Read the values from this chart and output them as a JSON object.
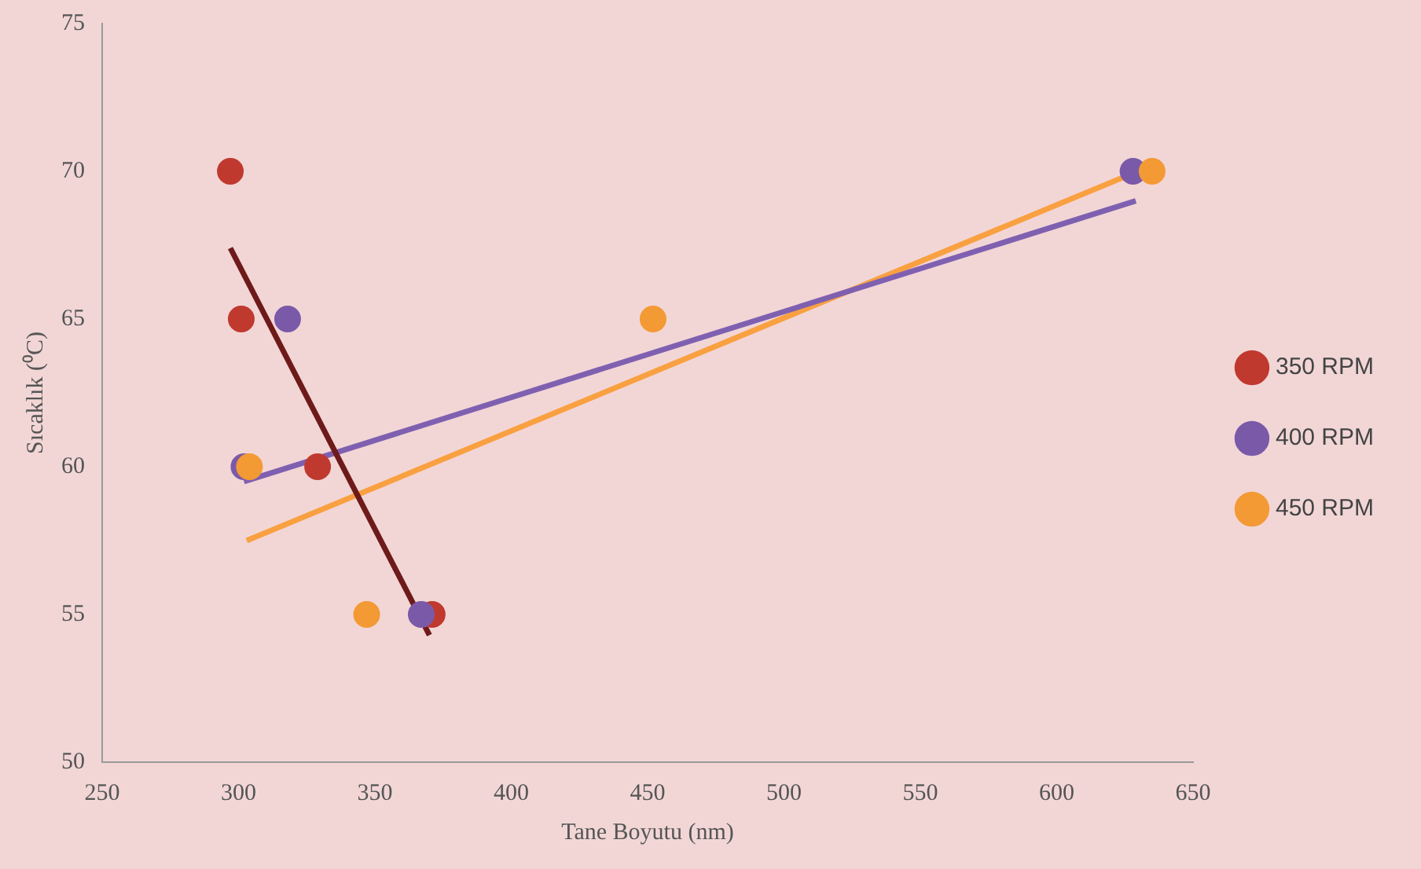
{
  "chart_data": {
    "type": "scatter",
    "xlabel": "Tane Boyutu (nm)",
    "ylabel": "Sıcaklık (⁰C)",
    "xlim": [
      250,
      650
    ],
    "xticks": [
      250,
      300,
      350,
      400,
      450,
      500,
      550,
      600,
      650
    ],
    "ylim": [
      50,
      75
    ],
    "yticks": [
      50,
      55,
      60,
      65,
      70,
      75
    ],
    "grid": false,
    "legend": "right",
    "series": [
      {
        "name": "350 RPM",
        "color": "#c0392f",
        "marker": "circle",
        "x": [
          297,
          301,
          329,
          371
        ],
        "values": [
          70,
          65,
          60,
          55
        ]
      },
      {
        "name": "400 RPM",
        "color": "#7a5aa8",
        "marker": "circle",
        "x": [
          318,
          302,
          367,
          628
        ],
        "values": [
          65,
          60,
          55,
          70
        ]
      },
      {
        "name": "450 RPM",
        "color": "#f39a35",
        "marker": "circle",
        "x": [
          304,
          347,
          452,
          635
        ],
        "values": [
          60,
          55,
          65,
          70
        ]
      },
      {
        "color": "#6e1a1a",
        "type": "line",
        "marker": "none",
        "x": [
          297,
          370
        ],
        "values": [
          67.4,
          54.3
        ]
      },
      {
        "color": "#7f60b0",
        "type": "line",
        "marker": "none",
        "x": [
          302,
          629
        ],
        "values": [
          59.5,
          69.0
        ]
      },
      {
        "color": "#f9a040",
        "type": "line",
        "marker": "none",
        "x": [
          303,
          635
        ],
        "values": [
          57.5,
          70.2
        ]
      }
    ]
  }
}
